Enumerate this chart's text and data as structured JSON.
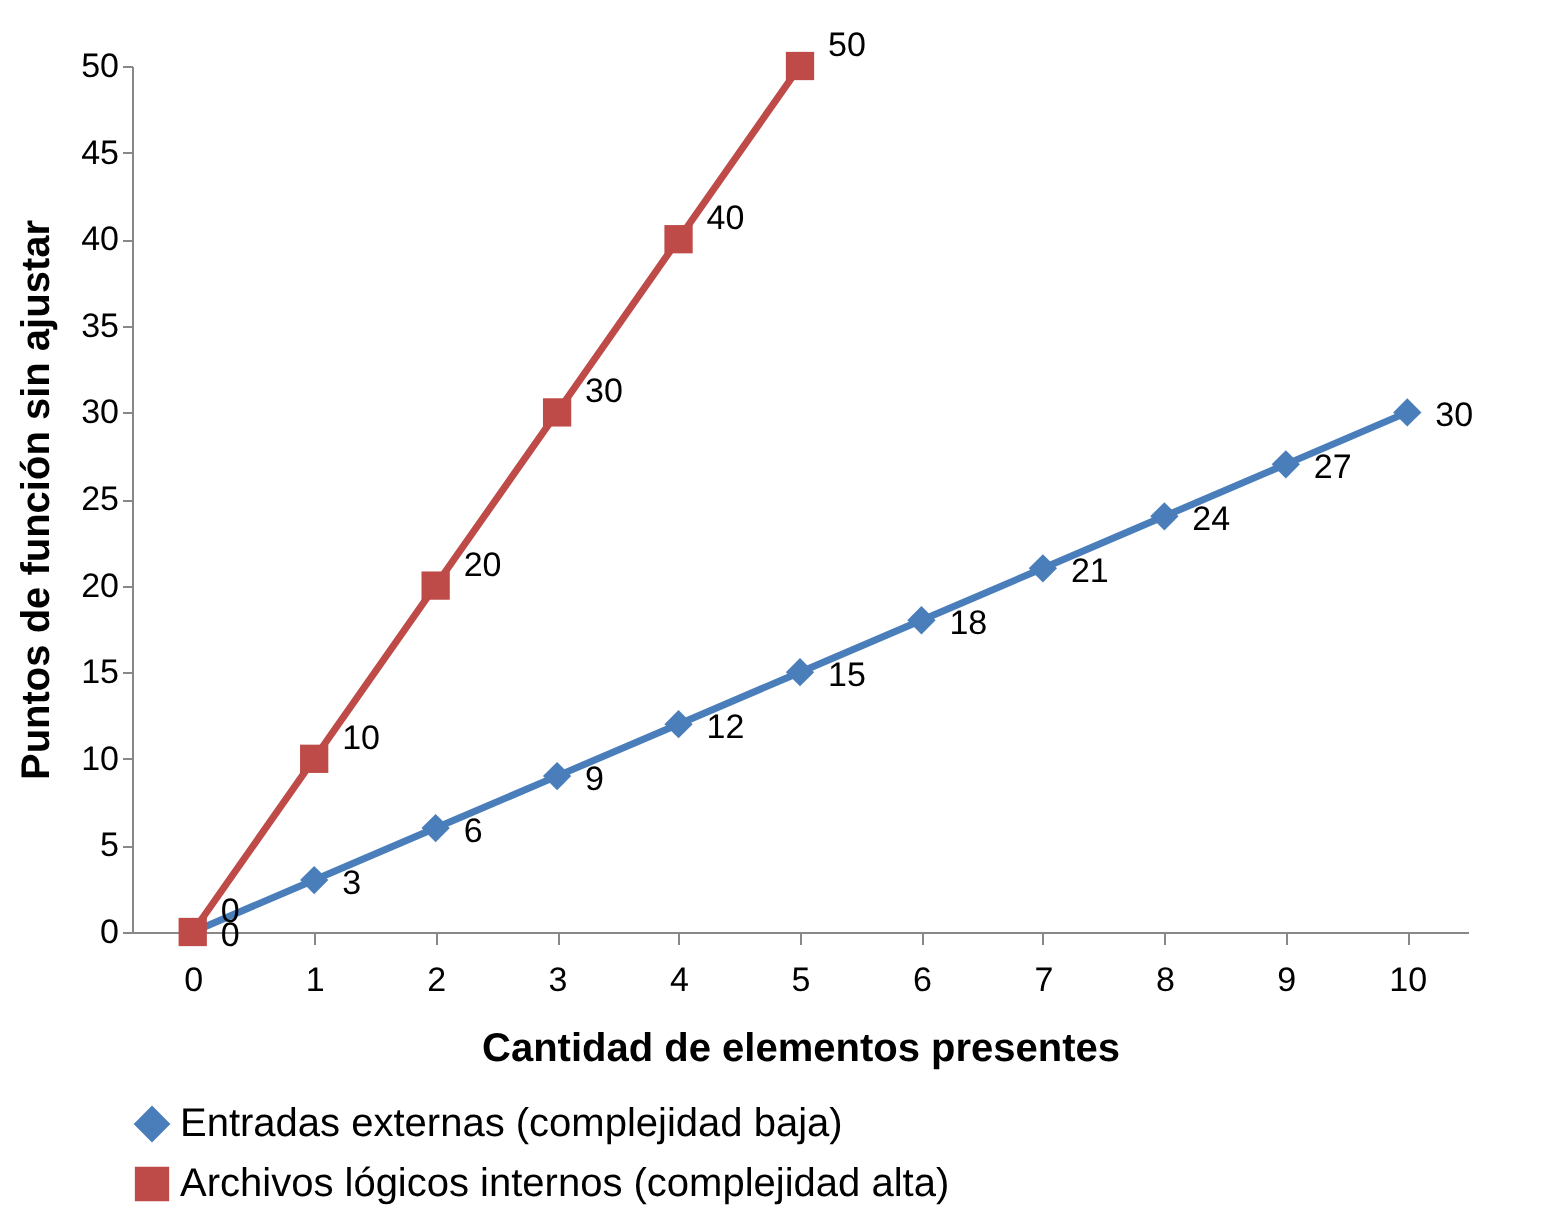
{
  "chart_data": {
    "type": "line",
    "xlabel": "Cantidad de elementos presentes",
    "ylabel": "Puntos de función sin ajustar",
    "categories": [
      "0",
      "1",
      "2",
      "3",
      "4",
      "5",
      "6",
      "7",
      "8",
      "9",
      "10"
    ],
    "series": [
      {
        "name": "Entradas externas (complejidad baja)",
        "color": "#4a7ebb",
        "marker": "diamond",
        "values": [
          0,
          3,
          6,
          9,
          12,
          15,
          18,
          21,
          24,
          27,
          30
        ]
      },
      {
        "name": "Archivos lógicos internos (complejidad alta)",
        "color": "#be4b48",
        "marker": "square",
        "values": [
          0,
          10,
          20,
          30,
          40,
          50,
          null,
          null,
          null,
          null,
          null
        ]
      }
    ],
    "ylim": [
      0,
      50
    ],
    "yticks": [
      0,
      5,
      10,
      15,
      20,
      25,
      30,
      35,
      40,
      45,
      50
    ],
    "grid": false,
    "legend": "bottom",
    "data_labels": true,
    "line_style": "solid"
  }
}
